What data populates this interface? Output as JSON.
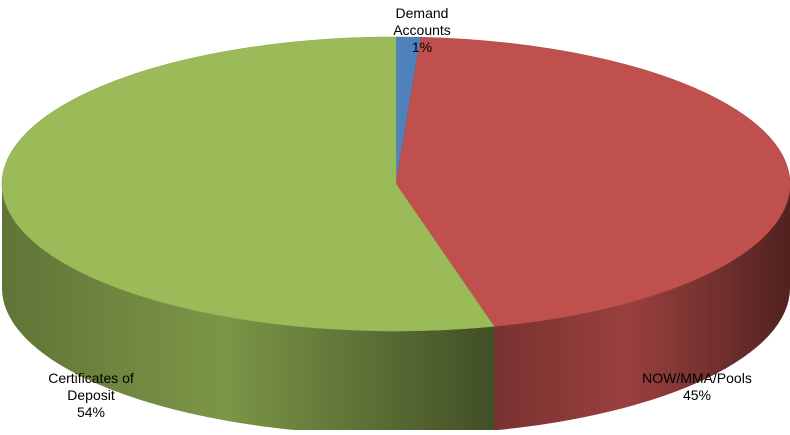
{
  "chart_data": {
    "type": "pie",
    "style": "3d",
    "slices": [
      {
        "name": "Demand Accounts",
        "value": 1,
        "label_lines": [
          "Demand",
          "Accounts",
          "1%"
        ],
        "color": "#4F81BD"
      },
      {
        "name": "NOW/MMA/Pools",
        "value": 45,
        "label_lines": [
          "NOW/MMA/Pools",
          "45%"
        ],
        "color": "#C0504D"
      },
      {
        "name": "Certificates of Deposit",
        "value": 54,
        "label_lines": [
          "Certificates of",
          "Deposit",
          "54%"
        ],
        "color": "#9BBB59"
      }
    ]
  }
}
